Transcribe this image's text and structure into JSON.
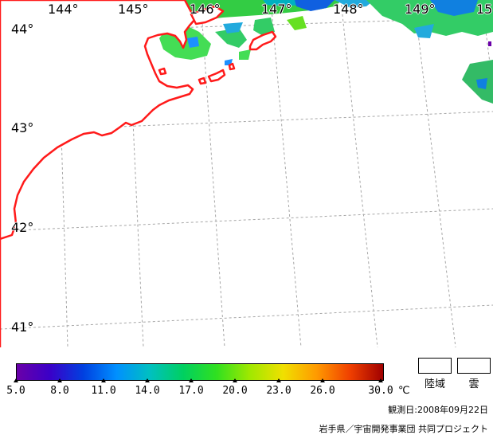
{
  "map": {
    "longitude_labels": [
      "144°",
      "145°",
      "146°",
      "147°",
      "148°",
      "149°",
      "15"
    ],
    "latitude_labels": [
      "44°",
      "43°",
      "42°",
      "41°"
    ],
    "grid_color": "#a6a6a6",
    "coastline_color": "#ff1a1a",
    "land_fill_color": "#ffffff"
  },
  "legend": {
    "colorbar_stops": [
      "#6a00a8",
      "#3a00c8",
      "#0040e0",
      "#0090ff",
      "#00c0c0",
      "#00d060",
      "#30e020",
      "#a0e800",
      "#f0e000",
      "#ff9a00",
      "#f04000",
      "#a00000"
    ],
    "ticks": [
      "5.0",
      "8.0",
      "11.0",
      "14.0",
      "17.0",
      "20.0",
      "23.0",
      "26.0",
      "30.0"
    ],
    "unit": "℃",
    "swatches": [
      {
        "label": "陸域",
        "color": "#ffffff"
      },
      {
        "label": "雲",
        "color": "#ffffff"
      }
    ],
    "observation_date": "観測日:2008年09月22日",
    "project_credit": "岩手県／宇宙開発事業団  共同プロジェクト"
  }
}
